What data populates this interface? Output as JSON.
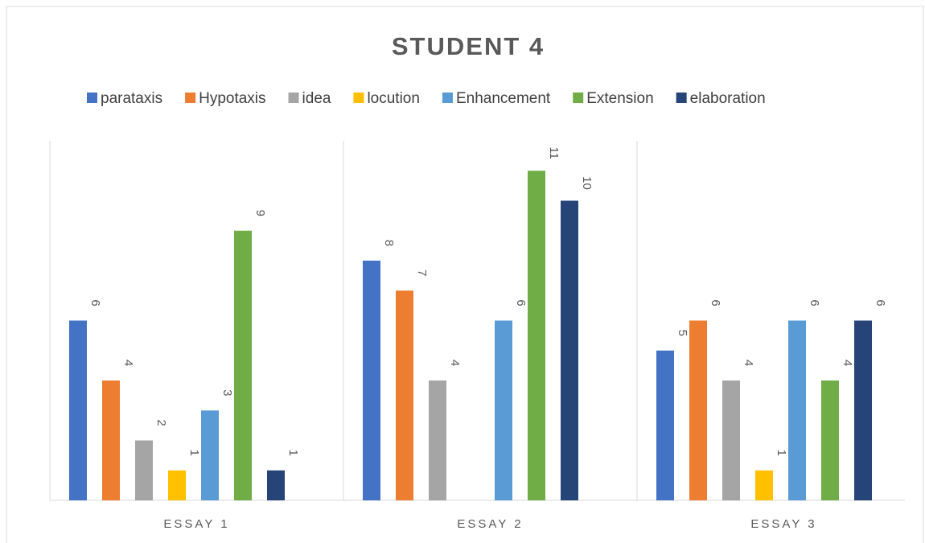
{
  "chart_data": {
    "type": "bar",
    "title": "STUDENT 4",
    "categories": [
      "ESSAY 1",
      "ESSAY 2",
      "ESSAY 3"
    ],
    "series": [
      {
        "name": "parataxis",
        "color": "#4472c4",
        "values": [
          6,
          8,
          5
        ]
      },
      {
        "name": "Hypotaxis",
        "color": "#ed7d31",
        "values": [
          4,
          7,
          6
        ]
      },
      {
        "name": "idea",
        "color": "#a5a5a5",
        "values": [
          2,
          4,
          4
        ]
      },
      {
        "name": "locution",
        "color": "#ffc000",
        "values": [
          1,
          null,
          1
        ]
      },
      {
        "name": "Enhancement",
        "color": "#5b9bd5",
        "values": [
          3,
          6,
          6
        ]
      },
      {
        "name": "Extension",
        "color": "#70ad47",
        "values": [
          9,
          11,
          4
        ]
      },
      {
        "name": "elaboration",
        "color": "#264478",
        "values": [
          1,
          10,
          6
        ]
      }
    ],
    "ylim": [
      0,
      12
    ],
    "legend": "top"
  }
}
